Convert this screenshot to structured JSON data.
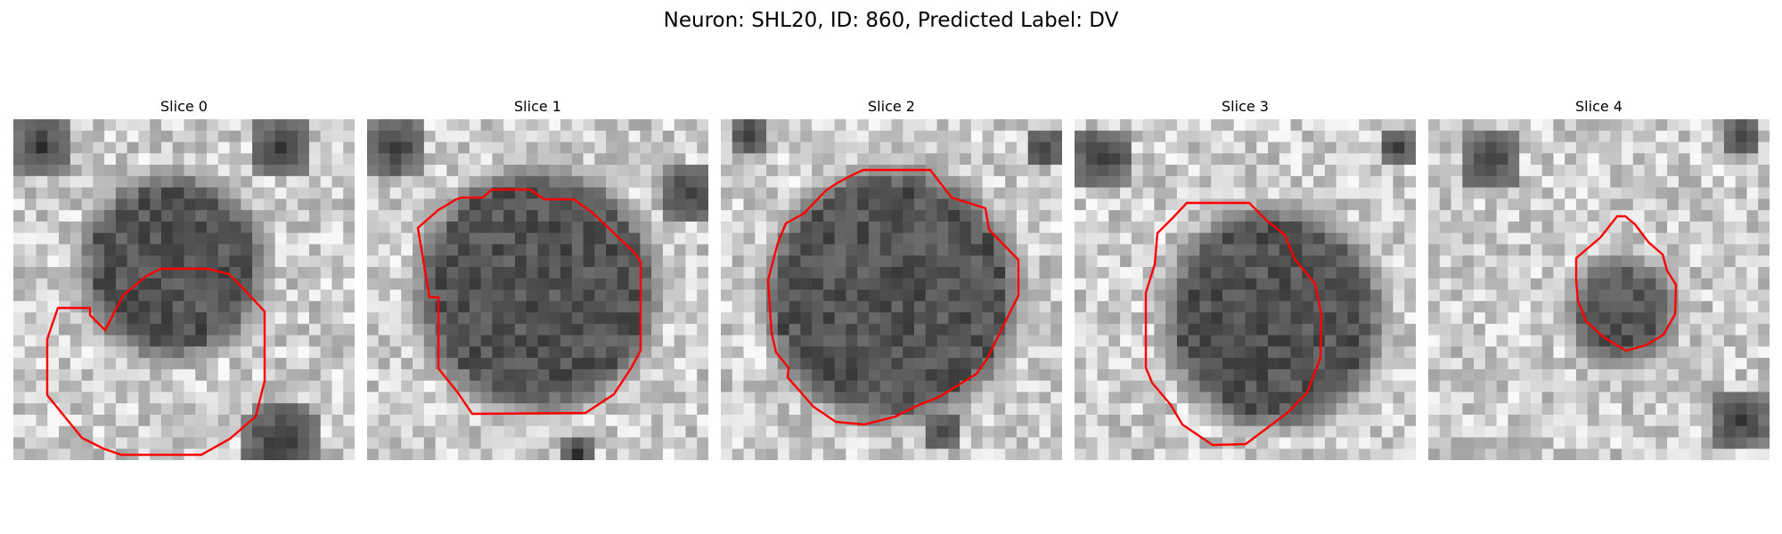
{
  "figure": {
    "title": "Neuron: SHL20, ID: 860, Predicted Label: DV",
    "outline_color": "#ff0000"
  },
  "slices": [
    {
      "label": "Slice 0",
      "cell_center": [
        14.0,
        13.0
      ],
      "cell_radius": 7.0,
      "dark_spots": [
        [
          23,
          28,
          4
        ],
        [
          23,
          2,
          3
        ],
        [
          2,
          2,
          3
        ]
      ]
    },
    {
      "label": "Slice 1",
      "cell_center": [
        15.0,
        15.0
      ],
      "cell_radius": 9.5,
      "dark_spots": [
        [
          28,
          6,
          3
        ],
        [
          18,
          29,
          2
        ],
        [
          2,
          2,
          3
        ]
      ]
    },
    {
      "label": "Slice 2",
      "cell_center": [
        15.0,
        15.5
      ],
      "cell_radius": 10.0,
      "dark_spots": [
        [
          19,
          27,
          2
        ],
        [
          2,
          1,
          2
        ],
        [
          28,
          2,
          2
        ]
      ]
    },
    {
      "label": "Slice 3",
      "cell_center": [
        17.5,
        17.5
      ],
      "cell_radius": 8.5,
      "dark_spots": [
        [
          2,
          3,
          3
        ],
        [
          28,
          2,
          2
        ]
      ]
    },
    {
      "label": "Slice 4",
      "cell_center": [
        17.0,
        17.0
      ],
      "cell_radius": 3.5,
      "dark_spots": [
        [
          27,
          26,
          3
        ],
        [
          5,
          3,
          3
        ],
        [
          27,
          1,
          2
        ]
      ]
    }
  ]
}
